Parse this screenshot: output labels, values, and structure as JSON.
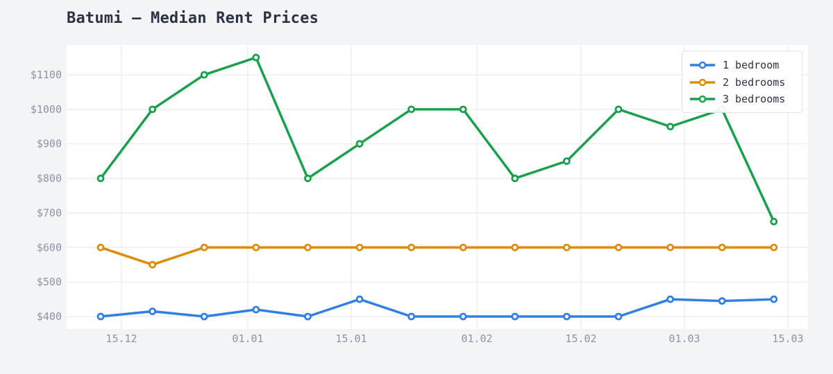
{
  "header": {
    "title": "Batumi — Median Rent Prices"
  },
  "colors": {
    "background": "#f3f4f6",
    "plot_bg": "#ffffff",
    "grid": "#e5e7eb",
    "tick_text": "#8a93a6",
    "title_text": "#2b3245",
    "series_1": "#2f7fe6",
    "series_2": "#e08a0a",
    "series_3": "#18a04a"
  },
  "legend": {
    "items": [
      {
        "label": "1 bedroom",
        "color": "#2f7fe6"
      },
      {
        "label": "2 bedrooms",
        "color": "#e08a0a"
      },
      {
        "label": "3 bedrooms",
        "color": "#18a04a"
      }
    ]
  },
  "chart_data": {
    "type": "line",
    "title": "Batumi — Median Rent Prices",
    "xlabel": "",
    "ylabel": "",
    "x": [
      "12.12",
      "19.12",
      "26.12",
      "02.01",
      "09.01",
      "16.01",
      "23.01",
      "30.01",
      "06.02",
      "13.02",
      "20.02",
      "27.02",
      "06.03",
      "13.03"
    ],
    "x_ticks": [
      "15.12",
      "01.01",
      "15.01",
      "01.02",
      "15.02",
      "01.03",
      "15.03"
    ],
    "y_ticks": [
      "$400",
      "$500",
      "$600",
      "$700",
      "$800",
      "$900",
      "$1000",
      "$1100"
    ],
    "ylim": [
      380,
      1190
    ],
    "grid": true,
    "legend_position": "top-right",
    "series": [
      {
        "name": "1 bedroom",
        "values": [
          400,
          415,
          400,
          420,
          400,
          450,
          400,
          400,
          400,
          400,
          400,
          450,
          445,
          450
        ]
      },
      {
        "name": "2 bedrooms",
        "values": [
          600,
          550,
          600,
          600,
          600,
          600,
          600,
          600,
          600,
          600,
          600,
          600,
          600,
          600
        ]
      },
      {
        "name": "3 bedrooms",
        "values": [
          800,
          1000,
          1100,
          1150,
          800,
          900,
          1000,
          1000,
          800,
          850,
          1000,
          950,
          1000,
          675
        ]
      }
    ]
  }
}
